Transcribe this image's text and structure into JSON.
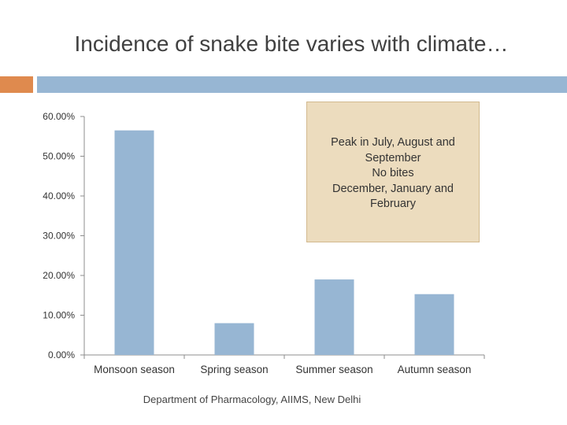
{
  "slide": {
    "title": "Incidence of snake bite varies with climate…",
    "footer": "Department of Pharmacology, AIIMS, New Delhi",
    "accent_colors": {
      "orange_band": "#df8a4e",
      "blue_band": "#97b6d3",
      "bar": "#97b6d3",
      "callout_fill": "#ecdcbe"
    }
  },
  "callout": {
    "lines": [
      "Peak in July, August and",
      "September",
      "No bites",
      "December, January and",
      "February"
    ]
  },
  "chart_data": {
    "type": "bar",
    "title": "",
    "xlabel": "",
    "ylabel": "",
    "categories": [
      "Monsoon season",
      "Spring season",
      "Summer season",
      "Autumn season"
    ],
    "values": [
      0.565,
      0.08,
      0.19,
      0.153
    ],
    "ylim": [
      0,
      0.6
    ],
    "yticks": [
      0,
      0.1,
      0.2,
      0.3,
      0.4,
      0.5,
      0.6
    ],
    "ytick_labels": [
      "0.00%",
      "10.00%",
      "20.00%",
      "30.00%",
      "40.00%",
      "50.00%",
      "60.00%"
    ],
    "grid": false,
    "legend": "none"
  }
}
